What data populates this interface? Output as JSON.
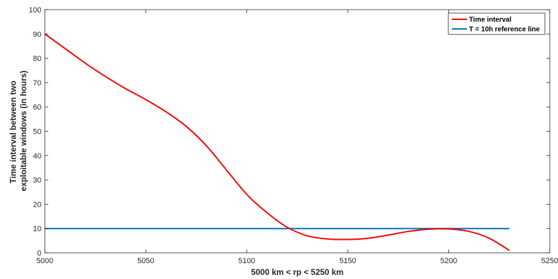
{
  "chart_data": {
    "type": "line",
    "title": "",
    "xlabel": "5000 km < rp < 5250 km",
    "ylabel_lines": [
      "Time interval between two",
      "exploitable windows (in hours)"
    ],
    "xlim": [
      5000,
      5250
    ],
    "ylim": [
      0,
      100
    ],
    "xticks": [
      5000,
      5050,
      5100,
      5150,
      5200,
      5250
    ],
    "yticks": [
      0,
      10,
      20,
      30,
      40,
      50,
      60,
      70,
      80,
      90,
      100
    ],
    "grid": false,
    "legend_position": "top-right",
    "series": [
      {
        "name": "Time interval",
        "color": "#ff0000",
        "x": [
          5000,
          5010,
          5020,
          5030,
          5040,
          5050,
          5060,
          5070,
          5080,
          5090,
          5100,
          5110,
          5120,
          5130,
          5140,
          5150,
          5160,
          5170,
          5180,
          5190,
          5200,
          5210,
          5220,
          5230
        ],
        "y": [
          90,
          84,
          78,
          72.5,
          67.5,
          63,
          58,
          52,
          44,
          34,
          24,
          16.5,
          10.5,
          7,
          5.7,
          5.5,
          6,
          7.3,
          8.8,
          9.7,
          9.8,
          8.8,
          6,
          1
        ]
      },
      {
        "name": "T = 10h reference line",
        "color": "#0072bd",
        "x": [
          5000,
          5230
        ],
        "y": [
          10,
          10
        ]
      }
    ]
  }
}
